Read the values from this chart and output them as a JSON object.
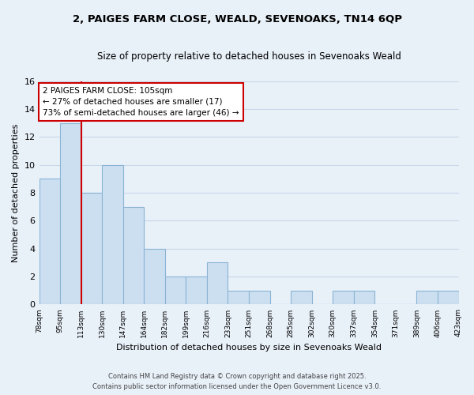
{
  "title": "2, PAIGES FARM CLOSE, WEALD, SEVENOAKS, TN14 6QP",
  "subtitle": "Size of property relative to detached houses in Sevenoaks Weald",
  "xlabel": "Distribution of detached houses by size in Sevenoaks Weald",
  "ylabel": "Number of detached properties",
  "bar_values": [
    9,
    13,
    8,
    10,
    7,
    4,
    2,
    2,
    3,
    1,
    1,
    0,
    1,
    0,
    1,
    1,
    0,
    0,
    1,
    1
  ],
  "bin_labels": [
    "78sqm",
    "95sqm",
    "113sqm",
    "130sqm",
    "147sqm",
    "164sqm",
    "182sqm",
    "199sqm",
    "216sqm",
    "233sqm",
    "251sqm",
    "268sqm",
    "285sqm",
    "302sqm",
    "320sqm",
    "337sqm",
    "354sqm",
    "371sqm",
    "389sqm",
    "406sqm",
    "423sqm"
  ],
  "bar_color": "#ccdff0",
  "bar_edge_color": "#8ab4d4",
  "grid_color": "#c8d8e8",
  "bg_color": "#e8f0f8",
  "vline_color": "#cc0000",
  "annotation_title": "2 PAIGES FARM CLOSE: 105sqm",
  "annotation_line1": "← 27% of detached houses are smaller (17)",
  "annotation_line2": "73% of semi-detached houses are larger (46) →",
  "annotation_box_color": "#ffffff",
  "annotation_box_edge": "#cc0000",
  "ylim": [
    0,
    16
  ],
  "yticks": [
    0,
    2,
    4,
    6,
    8,
    10,
    12,
    14,
    16
  ],
  "footer1": "Contains HM Land Registry data © Crown copyright and database right 2025.",
  "footer2": "Contains public sector information licensed under the Open Government Licence v3.0."
}
